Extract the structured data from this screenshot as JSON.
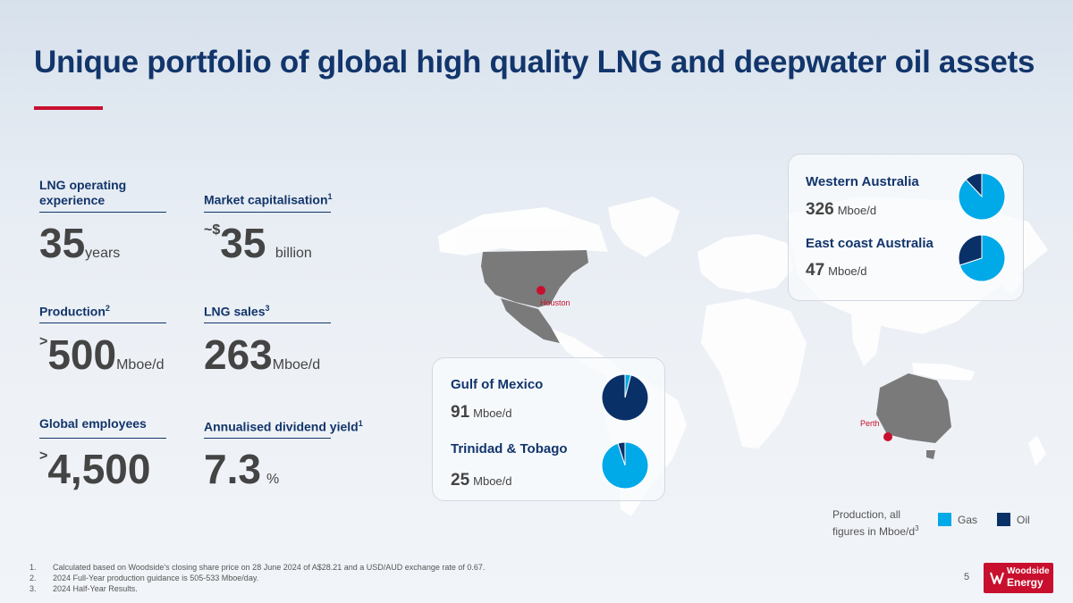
{
  "title": "Unique portfolio of global high quality LNG and deepwater oil assets",
  "metrics": {
    "lng_experience": {
      "label_line1": "LNG operating",
      "label_line2": "experience",
      "value": "35",
      "unit": "years"
    },
    "market_cap": {
      "label": "Market capitalisation",
      "sup": "1",
      "prefix": "~$",
      "value": "35",
      "unit": "billion"
    },
    "production": {
      "label": "Production",
      "sup": "2",
      "prefix": ">",
      "value": "500",
      "unit": "Mboe/d"
    },
    "lng_sales": {
      "label": "LNG sales",
      "sup": "3",
      "value": "263",
      "unit": "Mboe/d"
    },
    "employees": {
      "label": "Global employees",
      "prefix": ">",
      "value": "4,500"
    },
    "dividend": {
      "label": "Annualised dividend yield",
      "sup": "1",
      "value": "7.3",
      "unit": "%"
    }
  },
  "cities": {
    "houston": "Houston",
    "perth": "Perth"
  },
  "chart_data": [
    {
      "type": "pie",
      "title": "Western Australia",
      "value_label": "326",
      "unit": "Mboe/d",
      "categories": [
        "Gas",
        "Oil"
      ],
      "values": [
        88,
        12
      ]
    },
    {
      "type": "pie",
      "title": "East coast Australia",
      "value_label": "47",
      "unit": "Mboe/d",
      "categories": [
        "Gas",
        "Oil"
      ],
      "values": [
        70,
        30
      ]
    },
    {
      "type": "pie",
      "title": "Gulf of Mexico",
      "value_label": "91",
      "unit": "Mboe/d",
      "categories": [
        "Gas",
        "Oil"
      ],
      "values": [
        4,
        96
      ]
    },
    {
      "type": "pie",
      "title": "Trinidad & Tobago",
      "value_label": "25",
      "unit": "Mboe/d",
      "categories": [
        "Gas",
        "Oil"
      ],
      "values": [
        95,
        5
      ]
    }
  ],
  "legend": {
    "note_line1": "Production, all",
    "note_line2": "figures in Mboe/d",
    "note_sup": "3",
    "gas_label": "Gas",
    "oil_label": "Oil"
  },
  "colors": {
    "gas": "#00a9e8",
    "oil": "#0a3068",
    "accent": "#c8102e",
    "navy": "#12356b"
  },
  "footnotes": [
    {
      "num": "1.",
      "text": "Calculated based on Woodside's closing share price on 28 June 2024 of A$28.21 and a USD/AUD exchange rate of 0.67."
    },
    {
      "num": "2.",
      "text": "2024 Full-Year production guidance is 505-533 Mboe/day."
    },
    {
      "num": "3.",
      "text": "2024 Half-Year Results."
    }
  ],
  "page_number": "5",
  "logo": {
    "line1": "Woodside",
    "line2": "Energy"
  }
}
